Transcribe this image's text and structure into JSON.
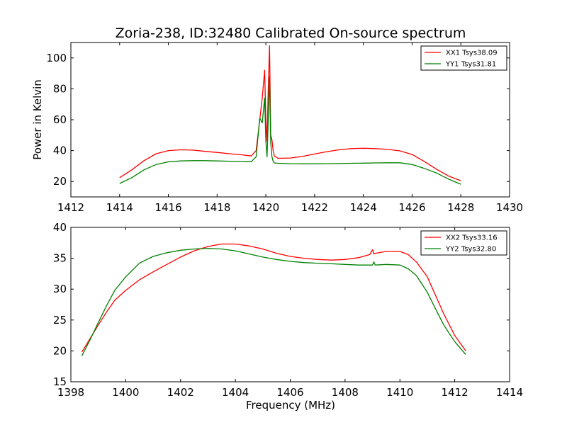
{
  "figure": {
    "title": "Zoria-238, ID:32480 Calibrated On-source spectrum",
    "xlabel": "Frequency (MHz)",
    "ylabel": "Power in Kelvin"
  },
  "colors": {
    "red": "#ff0000",
    "green": "#008000"
  },
  "chart_data": [
    {
      "type": "line",
      "xlabel": "",
      "ylabel": "Power in Kelvin",
      "xlim": [
        1412,
        1430
      ],
      "ylim": [
        10,
        110
      ],
      "xticks": [
        1412,
        1414,
        1416,
        1418,
        1420,
        1422,
        1424,
        1426,
        1428,
        1430
      ],
      "yticks": [
        20,
        40,
        60,
        80,
        100
      ],
      "legend": "top-right",
      "series": [
        {
          "name": "XX1 Tsys38.09",
          "color": "#ff0000",
          "x": [
            1414.0,
            1414.5,
            1415.0,
            1415.5,
            1416.0,
            1416.5,
            1417.0,
            1417.5,
            1418.0,
            1418.5,
            1419.0,
            1419.4,
            1419.6,
            1419.75,
            1419.85,
            1419.95,
            1420.0,
            1420.05,
            1420.1,
            1420.15,
            1420.2,
            1420.25,
            1420.3,
            1420.35,
            1420.5,
            1421.0,
            1421.5,
            1422.0,
            1422.5,
            1423.0,
            1423.5,
            1424.0,
            1424.5,
            1425.0,
            1425.5,
            1426.0,
            1426.5,
            1427.0,
            1427.5,
            1428.0
          ],
          "y": [
            22.5,
            27.5,
            33.5,
            38.0,
            40.0,
            40.5,
            40.3,
            39.5,
            38.8,
            38.0,
            37.3,
            36.5,
            40.0,
            60.0,
            74.0,
            92.0,
            60.0,
            46.0,
            80.0,
            108.0,
            50.0,
            47.0,
            40.0,
            36.5,
            35.0,
            35.2,
            36.2,
            37.8,
            39.3,
            40.5,
            41.3,
            41.5,
            41.3,
            40.8,
            39.8,
            37.5,
            33.0,
            28.0,
            23.5,
            20.5
          ]
        },
        {
          "name": "YY1 Tsys31.81",
          "color": "#008000",
          "x": [
            1414.0,
            1414.5,
            1415.0,
            1415.5,
            1416.0,
            1416.5,
            1417.0,
            1417.5,
            1418.0,
            1418.5,
            1419.0,
            1419.4,
            1419.6,
            1419.75,
            1419.85,
            1419.95,
            1420.0,
            1420.05,
            1420.1,
            1420.15,
            1420.2,
            1420.25,
            1420.3,
            1420.35,
            1420.5,
            1421.0,
            1421.5,
            1422.0,
            1422.5,
            1423.0,
            1423.5,
            1424.0,
            1424.5,
            1425.0,
            1425.5,
            1426.0,
            1426.5,
            1427.0,
            1427.5,
            1428.0
          ],
          "y": [
            18.7,
            22.5,
            27.5,
            31.0,
            32.7,
            33.3,
            33.5,
            33.5,
            33.3,
            33.1,
            32.9,
            32.8,
            36.0,
            61.0,
            58.0,
            74.0,
            46.0,
            36.0,
            60.0,
            88.0,
            45.0,
            36.0,
            33.0,
            32.0,
            31.8,
            31.5,
            31.4,
            31.4,
            31.5,
            31.6,
            31.8,
            31.9,
            32.0,
            32.1,
            32.1,
            31.0,
            28.5,
            25.5,
            21.5,
            18.2
          ]
        }
      ]
    },
    {
      "type": "line",
      "xlabel": "Frequency (MHz)",
      "ylabel": "",
      "xlim": [
        1398,
        1414
      ],
      "ylim": [
        15,
        40
      ],
      "xticks": [
        1398,
        1400,
        1402,
        1404,
        1406,
        1408,
        1410,
        1412,
        1414
      ],
      "yticks": [
        15,
        20,
        25,
        30,
        35,
        40
      ],
      "legend": "top-right",
      "series": [
        {
          "name": "XX2 Tsys33.16",
          "color": "#ff0000",
          "x": [
            1398.4,
            1398.7,
            1399.0,
            1399.3,
            1399.6,
            1400.0,
            1400.5,
            1401.0,
            1401.5,
            1402.0,
            1402.5,
            1403.0,
            1403.5,
            1404.0,
            1404.5,
            1405.0,
            1405.5,
            1406.0,
            1406.5,
            1407.0,
            1407.5,
            1408.0,
            1408.5,
            1408.9,
            1409.0,
            1409.05,
            1409.1,
            1409.5,
            1410.0,
            1410.3,
            1410.6,
            1411.0,
            1411.3,
            1411.6,
            1412.0,
            1412.4
          ],
          "y": [
            19.8,
            22.0,
            24.2,
            26.3,
            28.2,
            29.8,
            31.5,
            32.8,
            34.0,
            35.2,
            36.2,
            36.9,
            37.3,
            37.3,
            37.0,
            36.5,
            35.8,
            35.3,
            35.0,
            34.8,
            34.7,
            34.8,
            35.1,
            35.6,
            36.4,
            35.7,
            35.8,
            36.1,
            36.1,
            35.6,
            34.4,
            32.0,
            29.0,
            26.0,
            22.5,
            20.0
          ]
        },
        {
          "name": "YY2 Tsys32.80",
          "color": "#008000",
          "x": [
            1398.4,
            1398.7,
            1399.0,
            1399.3,
            1399.6,
            1400.0,
            1400.5,
            1401.0,
            1401.5,
            1402.0,
            1402.5,
            1403.0,
            1403.5,
            1404.0,
            1404.5,
            1405.0,
            1405.5,
            1406.0,
            1406.5,
            1407.0,
            1407.5,
            1408.0,
            1408.5,
            1409.0,
            1409.05,
            1409.1,
            1409.5,
            1410.0,
            1410.3,
            1410.6,
            1411.0,
            1411.3,
            1411.6,
            1412.0,
            1412.4
          ],
          "y": [
            19.2,
            21.8,
            24.6,
            27.3,
            29.8,
            32.0,
            34.2,
            35.3,
            35.9,
            36.3,
            36.5,
            36.6,
            36.5,
            36.2,
            35.7,
            35.2,
            34.8,
            34.5,
            34.3,
            34.2,
            34.1,
            34.0,
            33.9,
            33.9,
            34.4,
            33.9,
            34.0,
            33.9,
            33.3,
            32.2,
            29.5,
            26.8,
            24.2,
            21.5,
            19.4
          ]
        }
      ]
    }
  ]
}
